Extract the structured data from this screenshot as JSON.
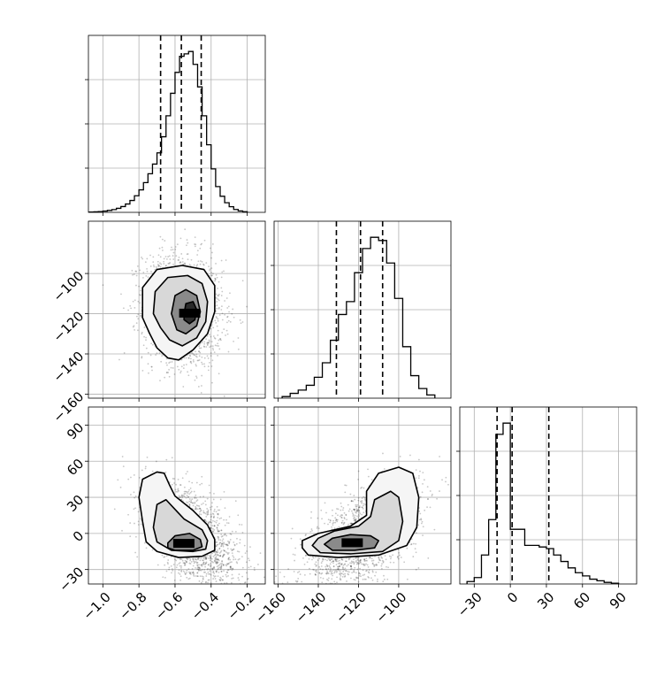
{
  "chart_data": {
    "type": "corner",
    "parameters": [
      {
        "ticks": [
          -1.0,
          -0.8,
          -0.6,
          -0.4,
          -0.2
        ],
        "tick_labels": [
          "−1.0",
          "−0.8",
          "−0.6",
          "−0.4",
          "−0.2"
        ],
        "range": [
          -1.08,
          -0.1
        ]
      },
      {
        "ticks": [
          -160,
          -140,
          -120,
          -100
        ],
        "tick_labels": [
          "−160",
          "−140",
          "−120",
          "−100"
        ],
        "range": [
          -162,
          -74
        ]
      },
      {
        "ticks": [
          -30,
          0,
          30,
          60,
          90
        ],
        "tick_labels": [
          "−30",
          "0",
          "30",
          "60",
          "90"
        ],
        "range": [
          -42,
          105
        ]
      }
    ],
    "quantiles": [
      [
        -0.68,
        -0.565,
        -0.455
      ],
      [
        -131,
        -119,
        -108
      ],
      [
        -11,
        1.5,
        32
      ]
    ],
    "histograms": [
      {
        "bin_edges": [
          -1.075,
          -1.05,
          -1.025,
          -1.0,
          -0.975,
          -0.95,
          -0.925,
          -0.9,
          -0.875,
          -0.85,
          -0.825,
          -0.8,
          -0.775,
          -0.75,
          -0.725,
          -0.7,
          -0.675,
          -0.65,
          -0.625,
          -0.6,
          -0.575,
          -0.55,
          -0.525,
          -0.5,
          -0.475,
          -0.45,
          -0.425,
          -0.4,
          -0.375,
          -0.35,
          -0.325,
          -0.3,
          -0.275,
          -0.25,
          -0.225,
          -0.2
        ],
        "counts": [
          0.002,
          0.003,
          0.005,
          0.008,
          0.012,
          0.017,
          0.025,
          0.036,
          0.052,
          0.074,
          0.103,
          0.14,
          0.185,
          0.24,
          0.3,
          0.37,
          0.47,
          0.6,
          0.74,
          0.87,
          0.97,
          0.985,
          1.0,
          0.92,
          0.78,
          0.6,
          0.42,
          0.27,
          0.16,
          0.1,
          0.06,
          0.035,
          0.018,
          0.009,
          0.004
        ],
        "ylim": [
          0,
          1.1
        ]
      },
      {
        "bin_edges": [
          -158,
          -154,
          -150,
          -146,
          -142,
          -138,
          -134,
          -130,
          -126,
          -122,
          -118,
          -114,
          -110,
          -106,
          -102,
          -98,
          -94,
          -90,
          -86,
          -82
        ],
        "counts": [
          0.01,
          0.03,
          0.05,
          0.08,
          0.13,
          0.22,
          0.36,
          0.52,
          0.6,
          0.78,
          0.93,
          1.0,
          0.98,
          0.84,
          0.62,
          0.32,
          0.14,
          0.06,
          0.02
        ],
        "ylim": [
          0,
          1.1
        ]
      },
      {
        "bin_edges": [
          -36,
          -30,
          -24,
          -18,
          -12,
          -6,
          0,
          6,
          12,
          18,
          24,
          30,
          36,
          42,
          48,
          54,
          60,
          66,
          72,
          78,
          84,
          90
        ],
        "counts": [
          0.015,
          0.04,
          0.18,
          0.4,
          0.93,
          1.0,
          0.34,
          0.34,
          0.24,
          0.24,
          0.23,
          0.22,
          0.18,
          0.14,
          0.1,
          0.07,
          0.05,
          0.03,
          0.02,
          0.01,
          0.005
        ],
        "ylim": [
          0,
          1.1
        ]
      }
    ],
    "pairs": [
      {
        "x_index": 0,
        "y_index": 1,
        "center": [
          -0.555,
          -118
        ],
        "sigma": [
          0.11,
          14
        ],
        "rho": -0.1,
        "contours": [
          [
            [
              -0.78,
              -122
            ],
            [
              -0.78,
              -107
            ],
            [
              -0.7,
              -98
            ],
            [
              -0.56,
              -96
            ],
            [
              -0.44,
              -98
            ],
            [
              -0.38,
              -106
            ],
            [
              -0.38,
              -119
            ],
            [
              -0.42,
              -130
            ],
            [
              -0.5,
              -138
            ],
            [
              -0.58,
              -143
            ],
            [
              -0.64,
              -142
            ],
            [
              -0.7,
              -137
            ],
            [
              -0.74,
              -130
            ]
          ],
          [
            [
              -0.72,
              -120
            ],
            [
              -0.71,
              -109
            ],
            [
              -0.64,
              -102
            ],
            [
              -0.53,
              -101
            ],
            [
              -0.45,
              -105
            ],
            [
              -0.42,
              -114
            ],
            [
              -0.43,
              -124
            ],
            [
              -0.48,
              -132
            ],
            [
              -0.56,
              -136
            ],
            [
              -0.63,
              -133
            ],
            [
              -0.68,
              -127
            ]
          ],
          [
            [
              -0.62,
              -120
            ],
            [
              -0.6,
              -111
            ],
            [
              -0.54,
              -108
            ],
            [
              -0.48,
              -111
            ],
            [
              -0.46,
              -119
            ],
            [
              -0.48,
              -126
            ],
            [
              -0.54,
              -130
            ],
            [
              -0.59,
              -128
            ]
          ],
          [
            [
              -0.55,
              -120
            ],
            [
              -0.54,
              -115
            ],
            [
              -0.5,
              -114
            ],
            [
              -0.48,
              -118
            ],
            [
              -0.49,
              -123
            ],
            [
              -0.52,
              -125
            ],
            [
              -0.55,
              -123
            ]
          ]
        ]
      },
      {
        "x_index": 0,
        "y_index": 2,
        "center": [
          -0.5,
          -3
        ],
        "sigma": [
          0.13,
          22
        ],
        "rho": -0.55,
        "contours": [
          [
            [
              -0.78,
              45
            ],
            [
              -0.7,
              51
            ],
            [
              -0.66,
              50
            ],
            [
              -0.63,
              40
            ],
            [
              -0.6,
              31
            ],
            [
              -0.5,
              19
            ],
            [
              -0.42,
              7
            ],
            [
              -0.38,
              -5
            ],
            [
              -0.38,
              -14
            ],
            [
              -0.45,
              -19
            ],
            [
              -0.58,
              -20
            ],
            [
              -0.7,
              -15
            ],
            [
              -0.76,
              -7
            ],
            [
              -0.78,
              10
            ],
            [
              -0.8,
              30
            ]
          ],
          [
            [
              -0.7,
              24
            ],
            [
              -0.65,
              28
            ],
            [
              -0.6,
              20
            ],
            [
              -0.55,
              12
            ],
            [
              -0.45,
              3
            ],
            [
              -0.42,
              -6
            ],
            [
              -0.43,
              -13
            ],
            [
              -0.5,
              -15
            ],
            [
              -0.62,
              -14
            ],
            [
              -0.7,
              -7
            ],
            [
              -0.72,
              5
            ]
          ],
          [
            [
              -0.64,
              -8
            ],
            [
              -0.6,
              -2
            ],
            [
              -0.52,
              0
            ],
            [
              -0.46,
              -5
            ],
            [
              -0.45,
              -11
            ],
            [
              -0.5,
              -14
            ],
            [
              -0.6,
              -14
            ],
            [
              -0.64,
              -12
            ]
          ]
        ]
      },
      {
        "x_index": 1,
        "y_index": 2,
        "center": [
          -118,
          -3
        ],
        "sigma": [
          14,
          22
        ],
        "rho": 0.55,
        "contours": [
          [
            [
              -148,
              -12
            ],
            [
              -145,
              -18
            ],
            [
              -130,
              -20
            ],
            [
              -110,
              -18
            ],
            [
              -96,
              -10
            ],
            [
              -91,
              5
            ],
            [
              -90,
              30
            ],
            [
              -93,
              50
            ],
            [
              -100,
              55
            ],
            [
              -110,
              50
            ],
            [
              -116,
              35
            ],
            [
              -116,
              15
            ],
            [
              -124,
              6
            ],
            [
              -140,
              0
            ],
            [
              -148,
              -6
            ]
          ],
          [
            [
              -143,
              -10
            ],
            [
              -139,
              -16
            ],
            [
              -124,
              -17
            ],
            [
              -108,
              -15
            ],
            [
              -100,
              -6
            ],
            [
              -98,
              10
            ],
            [
              -100,
              30
            ],
            [
              -104,
              35
            ],
            [
              -112,
              28
            ],
            [
              -114,
              14
            ],
            [
              -120,
              6
            ],
            [
              -132,
              2
            ],
            [
              -140,
              -4
            ]
          ],
          [
            [
              -137,
              -9
            ],
            [
              -133,
              -14
            ],
            [
              -122,
              -14
            ],
            [
              -112,
              -12
            ],
            [
              -110,
              -6
            ],
            [
              -114,
              -2
            ],
            [
              -124,
              -1
            ],
            [
              -133,
              -4
            ]
          ]
        ]
      }
    ],
    "xlabel": "",
    "ylabel": "",
    "title": ""
  }
}
